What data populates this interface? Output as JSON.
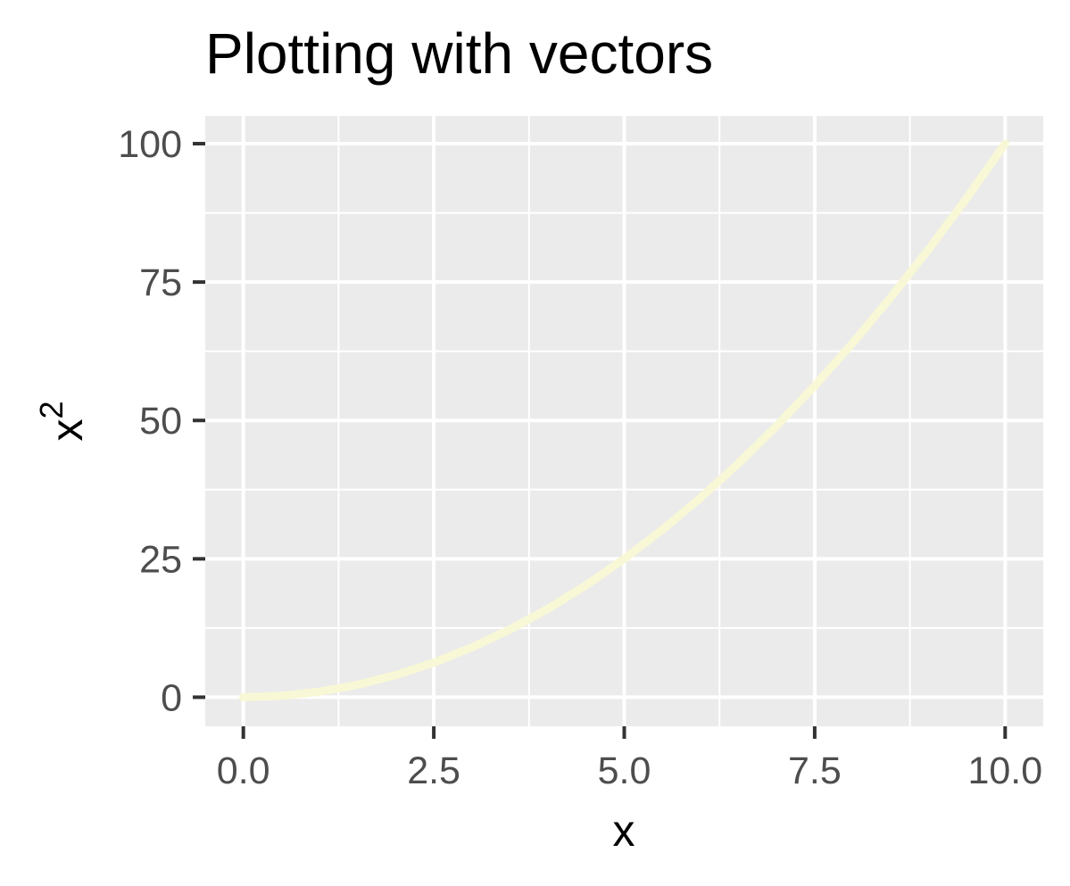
{
  "chart_data": {
    "type": "line",
    "title": "Plotting with vectors",
    "xlabel": "x",
    "ylabel_base": "x",
    "ylabel_superscript": "2",
    "xlim": [
      -0.5,
      10.5
    ],
    "ylim": [
      -5.25,
      105
    ],
    "x_ticks": [
      0,
      2.5,
      5,
      7.5,
      10
    ],
    "x_tick_labels": [
      "0.0",
      "2.5",
      "5.0",
      "7.5",
      "10.0"
    ],
    "y_ticks": [
      0,
      25,
      50,
      75,
      100
    ],
    "y_tick_labels": [
      "0",
      "25",
      "50",
      "75",
      "100"
    ],
    "grid": true,
    "series": [
      {
        "x": [
          0,
          0.5,
          1,
          1.5,
          2,
          2.5,
          3,
          3.5,
          4,
          4.5,
          5,
          5.5,
          6,
          6.5,
          7,
          7.5,
          8,
          8.5,
          9,
          9.5,
          10
        ],
        "y": [
          0,
          0.25,
          1,
          2.25,
          4,
          6.25,
          9,
          12.25,
          16,
          20.25,
          25,
          30.25,
          36,
          42.25,
          49,
          56.25,
          64,
          72.25,
          81,
          90.25,
          100
        ]
      }
    ],
    "colors": {
      "line": "#f8f8d6",
      "panel": "#ebebeb",
      "grid": "#ffffff",
      "tick": "#333333"
    }
  }
}
